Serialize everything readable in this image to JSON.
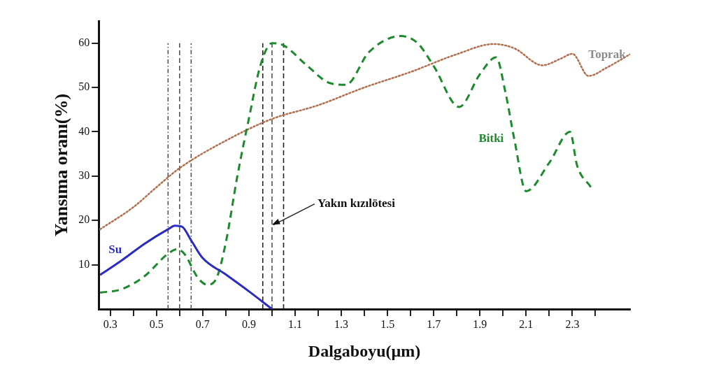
{
  "chart_data": {
    "type": "line",
    "xlabel": "Dalgaboyu(µm)",
    "ylabel": "Yansıma oranı(%)",
    "xlim": [
      0.25,
      2.55
    ],
    "ylim": [
      0,
      65
    ],
    "xticks": [
      0.3,
      {
        "value": 0.4,
        "label": null
      },
      0.5,
      {
        "value": 0.6,
        "label": null
      },
      0.7,
      {
        "value": 0.8,
        "label": null
      },
      0.9,
      {
        "value": 1.0,
        "label": null
      },
      1.1,
      {
        "value": 1.2,
        "label": null
      },
      1.3,
      {
        "value": 1.4,
        "label": null
      },
      1.5,
      {
        "value": 1.6,
        "label": null
      },
      1.7,
      {
        "value": 1.8,
        "label": null
      },
      1.9,
      {
        "value": 2.0,
        "label": null
      },
      2.1,
      {
        "value": 2.2,
        "label": null
      },
      2.3,
      {
        "value": 2.4,
        "label": null
      }
    ],
    "yticks": [
      10,
      20,
      30,
      40,
      50,
      60
    ],
    "grid": false,
    "legend": false,
    "marker": "none",
    "series": [
      {
        "name": "Su",
        "color": "#2b2bc0",
        "line_style": "solid",
        "x": [
          0.256,
          0.35,
          0.45,
          0.55,
          0.58,
          0.61,
          0.65,
          0.7,
          0.8,
          0.9,
          1.0
        ],
        "values": [
          7.7,
          11,
          14.8,
          18,
          18.8,
          18.6,
          15.5,
          11.5,
          7.8,
          4,
          0
        ]
      },
      {
        "name": "Bitki",
        "color": "#1e8a2e",
        "line_style": "dashed",
        "x": [
          0.256,
          0.35,
          0.45,
          0.55,
          0.59,
          0.62,
          0.68,
          0.72,
          0.76,
          0.8,
          0.85,
          0.9,
          0.95,
          1.0,
          1.05,
          1.15,
          1.25,
          1.32,
          1.42,
          1.557,
          1.63,
          1.7,
          1.81,
          1.9,
          1.97,
          2.01,
          2.05,
          2.1,
          2.2,
          2.29,
          2.32,
          2.38
        ],
        "values": [
          3.7,
          4.5,
          7.5,
          12.5,
          13.5,
          12.5,
          7,
          5.5,
          7,
          15,
          30,
          43,
          55,
          60,
          59.5,
          55,
          51,
          50.6,
          58,
          61.6,
          60,
          54.8,
          45.6,
          53,
          56.8,
          49,
          38,
          26.6,
          33,
          40,
          32.5,
          27.5
        ]
      },
      {
        "name": "Toprak",
        "color": "#b07050",
        "line_style": "dotted",
        "x": [
          0.256,
          0.4,
          0.5,
          0.6,
          0.8,
          1.0,
          1.2,
          1.4,
          1.6,
          1.8,
          1.96,
          2.05,
          2.17,
          2.25,
          2.3,
          2.37,
          2.45,
          2.55
        ],
        "values": [
          18,
          23,
          27.5,
          31.8,
          38,
          42.9,
          46,
          50,
          53.5,
          57.5,
          59.8,
          58.8,
          55,
          56.5,
          57.6,
          52.6,
          54.5,
          57.5
        ]
      }
    ],
    "ref_lines": [
      {
        "axis": "x",
        "value": 0.55,
        "color": "#555555",
        "line_style": "dotted"
      },
      {
        "axis": "x",
        "value": 0.6,
        "color": "#555555",
        "line_style": "dashed"
      },
      {
        "axis": "x",
        "value": 0.65,
        "color": "#555555",
        "line_style": "dotted"
      },
      {
        "axis": "x",
        "value": 0.96,
        "color": "#222222",
        "line_style": "dashed"
      },
      {
        "axis": "x",
        "value": 1.0,
        "color": "#555555",
        "line_style": "dashed"
      },
      {
        "axis": "x",
        "value": 1.05,
        "color": "#222222",
        "line_style": "dashed"
      }
    ],
    "annotations": [
      {
        "text": "Yakın kızılötesi",
        "x": 1.0,
        "y": 19
      }
    ]
  }
}
